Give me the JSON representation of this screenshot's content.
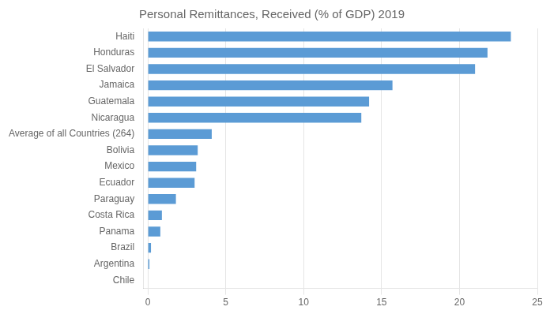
{
  "chart_data": {
    "type": "bar",
    "orientation": "horizontal",
    "title": "Personal Remittances, Received (% of GDP) 2019",
    "categories": [
      "Chile",
      "Argentina",
      "Brazil",
      "Panama",
      "Costa Rica",
      "Paraguay",
      "Ecuador",
      "Mexico",
      "Bolivia",
      "Average of all Countries (264)",
      "Nicaragua",
      "Guatemala",
      "Jamaica",
      "El Salvador",
      "Honduras",
      "Haiti"
    ],
    "values": [
      0.0,
      0.1,
      0.2,
      0.8,
      0.9,
      1.8,
      3.0,
      3.1,
      3.2,
      4.1,
      13.7,
      14.2,
      15.7,
      21.0,
      21.8,
      23.3
    ],
    "color": "#5B9BD5",
    "xlim": [
      -0.3,
      25
    ],
    "xticks": [
      0,
      5,
      10,
      15,
      20,
      25
    ],
    "grid": true
  }
}
